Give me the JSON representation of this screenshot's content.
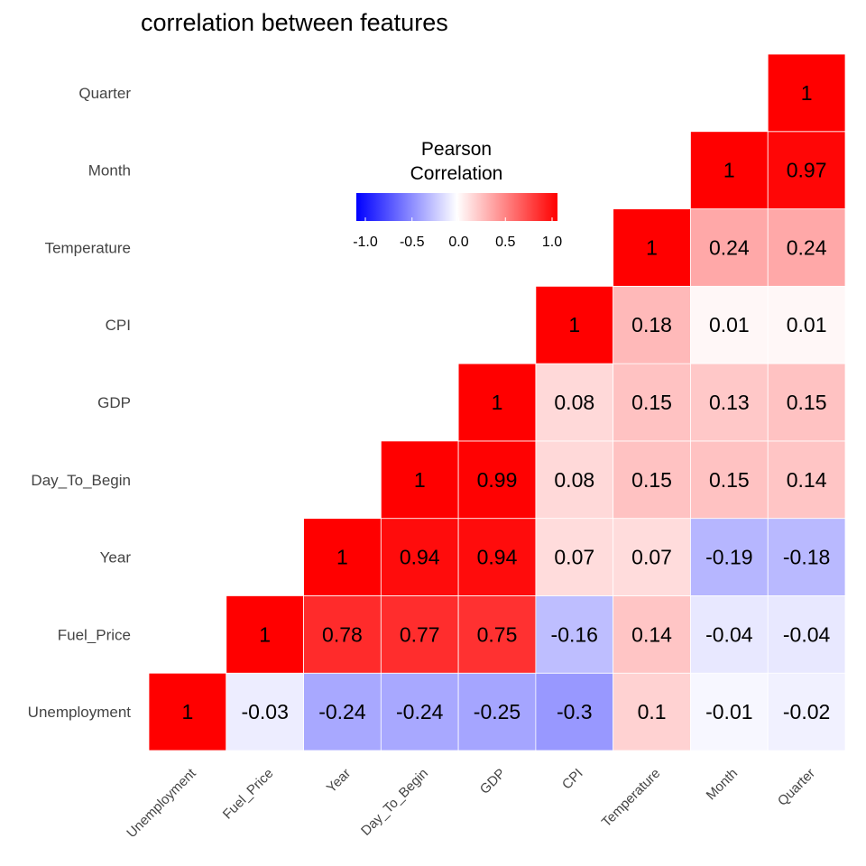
{
  "chart_data": {
    "type": "heatmap",
    "title": "correlation between features",
    "variables": [
      "Unemployment",
      "Fuel_Price",
      "Year",
      "Day_To_Begin",
      "GDP",
      "CPI",
      "Temperature",
      "Month",
      "Quarter"
    ],
    "cells": [
      {
        "x": "Unemployment",
        "y": "Unemployment",
        "value": 1,
        "label": "1"
      },
      {
        "x": "Fuel_Price",
        "y": "Unemployment",
        "value": -0.03,
        "label": "-0.03"
      },
      {
        "x": "Year",
        "y": "Unemployment",
        "value": -0.24,
        "label": "-0.24"
      },
      {
        "x": "Day_To_Begin",
        "y": "Unemployment",
        "value": -0.24,
        "label": "-0.24"
      },
      {
        "x": "GDP",
        "y": "Unemployment",
        "value": -0.25,
        "label": "-0.25"
      },
      {
        "x": "CPI",
        "y": "Unemployment",
        "value": -0.3,
        "label": "-0.3"
      },
      {
        "x": "Temperature",
        "y": "Unemployment",
        "value": 0.1,
        "label": "0.1"
      },
      {
        "x": "Month",
        "y": "Unemployment",
        "value": -0.01,
        "label": "-0.01"
      },
      {
        "x": "Quarter",
        "y": "Unemployment",
        "value": -0.02,
        "label": "-0.02"
      },
      {
        "x": "Fuel_Price",
        "y": "Fuel_Price",
        "value": 1,
        "label": "1"
      },
      {
        "x": "Year",
        "y": "Fuel_Price",
        "value": 0.78,
        "label": "0.78"
      },
      {
        "x": "Day_To_Begin",
        "y": "Fuel_Price",
        "value": 0.77,
        "label": "0.77"
      },
      {
        "x": "GDP",
        "y": "Fuel_Price",
        "value": 0.75,
        "label": "0.75"
      },
      {
        "x": "CPI",
        "y": "Fuel_Price",
        "value": -0.16,
        "label": "-0.16"
      },
      {
        "x": "Temperature",
        "y": "Fuel_Price",
        "value": 0.14,
        "label": "0.14"
      },
      {
        "x": "Month",
        "y": "Fuel_Price",
        "value": -0.04,
        "label": "-0.04"
      },
      {
        "x": "Quarter",
        "y": "Fuel_Price",
        "value": -0.04,
        "label": "-0.04"
      },
      {
        "x": "Year",
        "y": "Year",
        "value": 1,
        "label": "1"
      },
      {
        "x": "Day_To_Begin",
        "y": "Year",
        "value": 0.94,
        "label": "0.94"
      },
      {
        "x": "GDP",
        "y": "Year",
        "value": 0.94,
        "label": "0.94"
      },
      {
        "x": "CPI",
        "y": "Year",
        "value": 0.07,
        "label": "0.07"
      },
      {
        "x": "Temperature",
        "y": "Year",
        "value": 0.07,
        "label": "0.07"
      },
      {
        "x": "Month",
        "y": "Year",
        "value": -0.19,
        "label": "-0.19"
      },
      {
        "x": "Quarter",
        "y": "Year",
        "value": -0.18,
        "label": "-0.18"
      },
      {
        "x": "Day_To_Begin",
        "y": "Day_To_Begin",
        "value": 1,
        "label": "1"
      },
      {
        "x": "GDP",
        "y": "Day_To_Begin",
        "value": 0.99,
        "label": "0.99"
      },
      {
        "x": "CPI",
        "y": "Day_To_Begin",
        "value": 0.08,
        "label": "0.08"
      },
      {
        "x": "Temperature",
        "y": "Day_To_Begin",
        "value": 0.15,
        "label": "0.15"
      },
      {
        "x": "Month",
        "y": "Day_To_Begin",
        "value": 0.15,
        "label": "0.15"
      },
      {
        "x": "Quarter",
        "y": "Day_To_Begin",
        "value": 0.14,
        "label": "0.14"
      },
      {
        "x": "GDP",
        "y": "GDP",
        "value": 1,
        "label": "1"
      },
      {
        "x": "CPI",
        "y": "GDP",
        "value": 0.08,
        "label": "0.08"
      },
      {
        "x": "Temperature",
        "y": "GDP",
        "value": 0.15,
        "label": "0.15"
      },
      {
        "x": "Month",
        "y": "GDP",
        "value": 0.13,
        "label": "0.13"
      },
      {
        "x": "Quarter",
        "y": "GDP",
        "value": 0.15,
        "label": "0.15"
      },
      {
        "x": "CPI",
        "y": "CPI",
        "value": 1,
        "label": "1"
      },
      {
        "x": "Temperature",
        "y": "CPI",
        "value": 0.18,
        "label": "0.18"
      },
      {
        "x": "Month",
        "y": "CPI",
        "value": 0.01,
        "label": "0.01"
      },
      {
        "x": "Quarter",
        "y": "CPI",
        "value": 0.01,
        "label": "0.01"
      },
      {
        "x": "Temperature",
        "y": "Temperature",
        "value": 1,
        "label": "1"
      },
      {
        "x": "Month",
        "y": "Temperature",
        "value": 0.24,
        "label": "0.24"
      },
      {
        "x": "Quarter",
        "y": "Temperature",
        "value": 0.24,
        "label": "0.24"
      },
      {
        "x": "Month",
        "y": "Month",
        "value": 1,
        "label": "1"
      },
      {
        "x": "Quarter",
        "y": "Month",
        "value": 0.97,
        "label": "0.97"
      },
      {
        "x": "Quarter",
        "y": "Quarter",
        "value": 1,
        "label": "1"
      }
    ],
    "legend": {
      "title_line1": "Pearson",
      "title_line2": "Correlation",
      "position": "top-center",
      "range": [
        -1,
        1
      ],
      "ticks": [
        "-1.0",
        "-0.5",
        "0.0",
        "0.5",
        "1.0"
      ],
      "colors": {
        "low": "#0000ff",
        "mid": "#ffffff",
        "high": "#ff0000"
      }
    },
    "grid": false
  }
}
